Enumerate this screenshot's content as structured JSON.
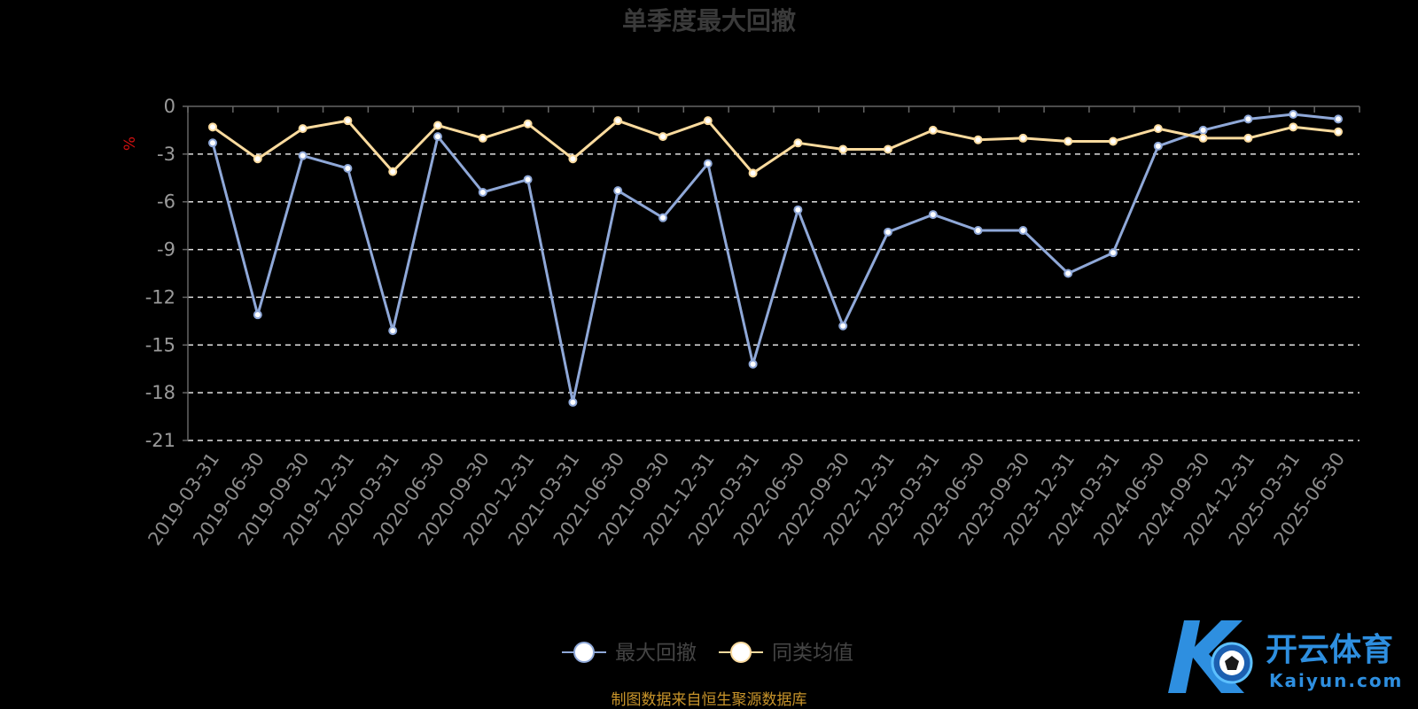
{
  "chart_data": {
    "type": "line",
    "title": "单季度最大回撤",
    "ylabel": "%",
    "ylim": [
      -21,
      0
    ],
    "yticks": [
      0,
      -3,
      -6,
      -9,
      -12,
      -15,
      -18,
      -21
    ],
    "grid": true,
    "legend_position": "bottom-center",
    "categories": [
      "2019-03-31",
      "2019-06-30",
      "2019-09-30",
      "2019-12-31",
      "2020-03-31",
      "2020-06-30",
      "2020-09-30",
      "2020-12-31",
      "2021-03-31",
      "2021-06-30",
      "2021-09-30",
      "2021-12-31",
      "2022-03-31",
      "2022-06-30",
      "2022-09-30",
      "2022-12-31",
      "2023-03-31",
      "2023-06-30",
      "2023-09-30",
      "2023-12-31",
      "2024-03-31",
      "2024-06-30",
      "2024-09-30",
      "2024-12-31",
      "2025-03-31",
      "2025-06-30"
    ],
    "series": [
      {
        "name": "最大回撤",
        "color": "#8fa8d8",
        "values": [
          -2.3,
          -13.1,
          -3.1,
          -3.9,
          -14.1,
          -1.9,
          -5.4,
          -4.6,
          -18.6,
          -5.3,
          -7.0,
          -3.6,
          -16.2,
          -6.5,
          -13.8,
          -7.9,
          -6.8,
          -7.8,
          -7.8,
          -10.5,
          -9.2,
          -2.5,
          -1.5,
          -0.8,
          -0.5,
          -0.8
        ]
      },
      {
        "name": "同类均值",
        "color": "#fbdb9e",
        "values": [
          -1.3,
          -3.3,
          -1.4,
          -0.9,
          -4.1,
          -1.2,
          -2.0,
          -1.1,
          -3.3,
          -0.9,
          -1.9,
          -0.9,
          -4.2,
          -2.3,
          -2.7,
          -2.7,
          -1.5,
          -2.1,
          -2.0,
          -2.2,
          -2.2,
          -1.4,
          -2.0,
          -2.0,
          -1.3,
          -1.6
        ]
      }
    ]
  },
  "source": "制图数据来自恒生聚源数据库",
  "watermark": {
    "main": "开云体育",
    "sub": "Kaiyun.com",
    "logo_letter": "K"
  }
}
